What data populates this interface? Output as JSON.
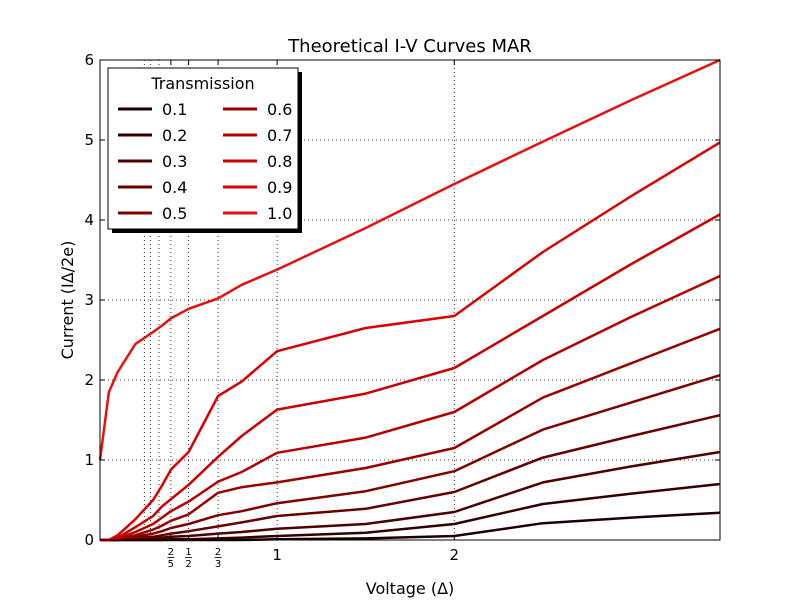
{
  "chart_data": {
    "type": "line",
    "title": "Theoretical I-V Curves MAR",
    "xlabel": "Voltage (Δ)",
    "ylabel": "Current (IΔ/2e)",
    "xlim": [
      0.0,
      3.5
    ],
    "ylim": [
      0,
      6
    ],
    "grid": "dotted at major and subharmonic ticks",
    "x_ticks": [
      {
        "value": 0.4,
        "num": "2",
        "den": "5"
      },
      {
        "value": 0.5,
        "num": "1",
        "den": "2"
      },
      {
        "value": 0.6667,
        "num": "2",
        "den": "3"
      },
      {
        "value": 1,
        "label": "1"
      },
      {
        "value": 2,
        "label": "2"
      }
    ],
    "x_grid_extra": [
      0.25,
      0.2857,
      0.3333
    ],
    "y_ticks": [
      0,
      1,
      2,
      3,
      4,
      5,
      6
    ],
    "legend": {
      "title": "Transmission",
      "placement": "top-left",
      "columns": 2
    },
    "x": [
      0.0,
      0.05,
      0.1,
      0.2,
      0.3,
      0.35,
      0.4,
      0.5,
      0.6667,
      0.8,
      1.0,
      1.5,
      2.0,
      2.5,
      3.0,
      3.5
    ],
    "series": [
      {
        "name": "0.1",
        "color": "#1a0000",
        "values": [
          0.0,
          0.0,
          0.0,
          0.0,
          0.0,
          0.0,
          0.0,
          0.0,
          0.0,
          0.0,
          0.01,
          0.02,
          0.05,
          0.21,
          0.28,
          0.34
        ]
      },
      {
        "name": "0.2",
        "color": "#330000",
        "values": [
          0.0,
          0.0,
          0.0,
          0.0,
          0.0,
          0.0,
          0.01,
          0.01,
          0.02,
          0.03,
          0.05,
          0.09,
          0.2,
          0.45,
          0.58,
          0.7
        ]
      },
      {
        "name": "0.3",
        "color": "#4d0000",
        "values": [
          0.0,
          0.0,
          0.0,
          0.01,
          0.02,
          0.03,
          0.04,
          0.05,
          0.08,
          0.1,
          0.14,
          0.2,
          0.35,
          0.72,
          0.92,
          1.1
        ]
      },
      {
        "name": "0.4",
        "color": "#660000",
        "values": [
          0.0,
          0.0,
          0.0,
          0.02,
          0.04,
          0.06,
          0.08,
          0.11,
          0.17,
          0.22,
          0.3,
          0.39,
          0.6,
          1.03,
          1.3,
          1.56
        ]
      },
      {
        "name": "0.5",
        "color": "#800000",
        "values": [
          0.0,
          0.0,
          0.01,
          0.04,
          0.08,
          0.11,
          0.15,
          0.2,
          0.31,
          0.36,
          0.46,
          0.61,
          0.86,
          1.38,
          1.72,
          2.06
        ]
      },
      {
        "name": "0.6",
        "color": "#990000",
        "values": [
          0.0,
          0.0,
          0.01,
          0.06,
          0.13,
          0.18,
          0.24,
          0.32,
          0.59,
          0.66,
          0.72,
          0.9,
          1.15,
          1.78,
          2.21,
          2.64
        ]
      },
      {
        "name": "0.7",
        "color": "#b30000",
        "values": [
          0.0,
          0.0,
          0.02,
          0.1,
          0.2,
          0.28,
          0.36,
          0.48,
          0.73,
          0.85,
          1.09,
          1.28,
          1.6,
          2.25,
          2.79,
          3.3
        ]
      },
      {
        "name": "0.8",
        "color": "#c80000",
        "values": [
          0.0,
          0.0,
          0.03,
          0.16,
          0.3,
          0.42,
          0.51,
          0.69,
          1.04,
          1.3,
          1.63,
          1.83,
          2.15,
          2.8,
          3.45,
          4.07
        ]
      },
      {
        "name": "0.9",
        "color": "#d80000",
        "values": [
          0.0,
          0.0,
          0.06,
          0.26,
          0.5,
          0.68,
          0.88,
          1.1,
          1.8,
          1.98,
          2.36,
          2.65,
          2.8,
          3.6,
          4.3,
          4.97
        ]
      },
      {
        "name": "1.0",
        "color": "#e61010",
        "values": [
          1.0,
          1.85,
          2.1,
          2.45,
          2.6,
          2.68,
          2.77,
          2.89,
          3.02,
          3.19,
          3.38,
          3.9,
          4.45,
          4.98,
          5.5,
          6.0
        ]
      }
    ]
  }
}
